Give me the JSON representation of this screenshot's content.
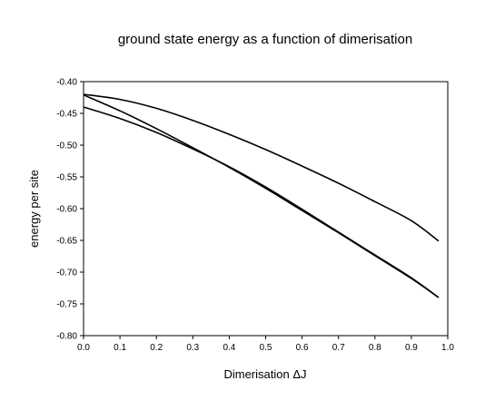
{
  "chart_data": {
    "type": "line",
    "title": "ground state energy as a function of dimerisation",
    "xlabel": "Dimerisation ΔJ",
    "ylabel": "energy per site",
    "xlim": [
      0.0,
      1.0
    ],
    "ylim": [
      -0.8,
      -0.4
    ],
    "xticks": [
      "0.0",
      "0.1",
      "0.2",
      "0.3",
      "0.4",
      "0.5",
      "0.6",
      "0.7",
      "0.8",
      "0.9",
      "1.0"
    ],
    "yticks": [
      "-0.40",
      "-0.45",
      "-0.50",
      "-0.55",
      "-0.60",
      "-0.65",
      "-0.70",
      "-0.75",
      "-0.80"
    ],
    "grid": false,
    "legend": "none",
    "series": [
      {
        "x": [
          0.0,
          0.1,
          0.2,
          0.3,
          0.4,
          0.5,
          0.6,
          0.7,
          0.8,
          0.9,
          0.975
        ],
        "y": [
          -0.42,
          -0.428,
          -0.442,
          -0.461,
          -0.483,
          -0.507,
          -0.533,
          -0.56,
          -0.589,
          -0.619,
          -0.651
        ]
      },
      {
        "x": [
          0.0,
          0.1,
          0.2,
          0.3,
          0.4,
          0.5,
          0.6,
          0.7,
          0.8,
          0.9,
          0.975
        ],
        "y": [
          -0.421,
          -0.446,
          -0.474,
          -0.504,
          -0.535,
          -0.568,
          -0.603,
          -0.638,
          -0.674,
          -0.71,
          -0.74
        ]
      },
      {
        "x": [
          0.0,
          0.1,
          0.2,
          0.3,
          0.4,
          0.5,
          0.6,
          0.7,
          0.8,
          0.9,
          0.975
        ],
        "y": [
          -0.44,
          -0.458,
          -0.48,
          -0.506,
          -0.534,
          -0.566,
          -0.601,
          -0.637,
          -0.673,
          -0.709,
          -0.74
        ]
      }
    ]
  }
}
